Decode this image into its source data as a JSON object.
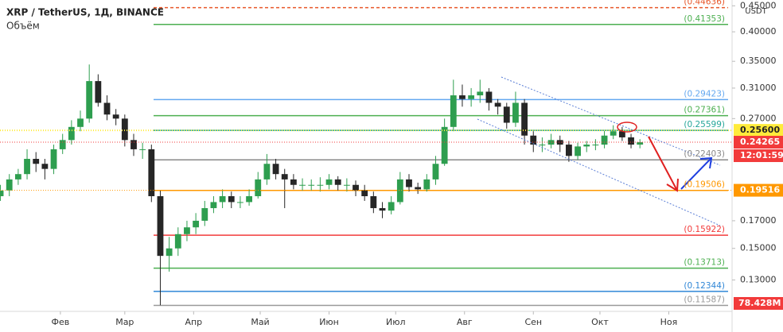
{
  "chart_data": {
    "type": "candlestick",
    "title": "XRP / TetherUS, 1Д, BINANCE",
    "subtitle": "Объём",
    "y_axis_label": "USDT",
    "log_scale": true,
    "up_color": "#2e9e4f",
    "down_color": "#262626",
    "x": [
      4,
      8,
      12,
      16,
      20,
      24,
      28,
      32,
      36,
      40,
      44,
      48,
      52,
      56,
      60,
      64,
      68,
      72,
      76,
      80,
      84,
      88,
      92,
      96,
      100,
      104,
      108,
      112,
      116,
      120,
      124,
      128,
      132,
      136,
      140,
      144,
      148,
      152,
      156,
      160,
      164,
      168,
      172,
      176,
      180,
      184,
      188,
      192,
      196,
      200,
      204,
      208,
      212,
      216,
      220,
      224,
      228,
      232,
      236,
      240,
      244,
      248,
      252,
      256,
      260,
      264,
      268,
      272,
      276,
      280,
      284,
      288,
      292
    ],
    "ohlc": [
      [
        0.19,
        0.2,
        0.186,
        0.195
      ],
      [
        0.195,
        0.21,
        0.19,
        0.205
      ],
      [
        0.205,
        0.215,
        0.2,
        0.21
      ],
      [
        0.21,
        0.235,
        0.205,
        0.225
      ],
      [
        0.225,
        0.232,
        0.212,
        0.22
      ],
      [
        0.22,
        0.225,
        0.205,
        0.215
      ],
      [
        0.215,
        0.24,
        0.21,
        0.235
      ],
      [
        0.235,
        0.252,
        0.23,
        0.245
      ],
      [
        0.245,
        0.268,
        0.24,
        0.26
      ],
      [
        0.26,
        0.28,
        0.255,
        0.27
      ],
      [
        0.27,
        0.345,
        0.265,
        0.32
      ],
      [
        0.32,
        0.33,
        0.285,
        0.29
      ],
      [
        0.29,
        0.3,
        0.268,
        0.275
      ],
      [
        0.275,
        0.282,
        0.262,
        0.27
      ],
      [
        0.27,
        0.275,
        0.238,
        0.245
      ],
      [
        0.245,
        0.252,
        0.228,
        0.235
      ],
      [
        0.235,
        0.242,
        0.225,
        0.235
      ],
      [
        0.235,
        0.24,
        0.185,
        0.19
      ],
      [
        0.19,
        0.195,
        0.116,
        0.145
      ],
      [
        0.145,
        0.158,
        0.135,
        0.15
      ],
      [
        0.15,
        0.165,
        0.145,
        0.16
      ],
      [
        0.16,
        0.17,
        0.155,
        0.165
      ],
      [
        0.165,
        0.176,
        0.16,
        0.17
      ],
      [
        0.17,
        0.186,
        0.166,
        0.18
      ],
      [
        0.18,
        0.19,
        0.176,
        0.185
      ],
      [
        0.185,
        0.196,
        0.18,
        0.19
      ],
      [
        0.19,
        0.194,
        0.18,
        0.185
      ],
      [
        0.185,
        0.19,
        0.18,
        0.185
      ],
      [
        0.185,
        0.196,
        0.182,
        0.19
      ],
      [
        0.19,
        0.212,
        0.188,
        0.205
      ],
      [
        0.205,
        0.23,
        0.2,
        0.22
      ],
      [
        0.22,
        0.225,
        0.205,
        0.21
      ],
      [
        0.21,
        0.215,
        0.18,
        0.205
      ],
      [
        0.205,
        0.21,
        0.196,
        0.2
      ],
      [
        0.2,
        0.206,
        0.195,
        0.2
      ],
      [
        0.2,
        0.205,
        0.195,
        0.2
      ],
      [
        0.2,
        0.207,
        0.194,
        0.2
      ],
      [
        0.2,
        0.21,
        0.196,
        0.205
      ],
      [
        0.205,
        0.208,
        0.195,
        0.2
      ],
      [
        0.2,
        0.206,
        0.194,
        0.2
      ],
      [
        0.2,
        0.204,
        0.19,
        0.195
      ],
      [
        0.195,
        0.2,
        0.186,
        0.19
      ],
      [
        0.19,
        0.194,
        0.176,
        0.18
      ],
      [
        0.18,
        0.185,
        0.172,
        0.178
      ],
      [
        0.178,
        0.19,
        0.175,
        0.185
      ],
      [
        0.185,
        0.212,
        0.183,
        0.205
      ],
      [
        0.205,
        0.21,
        0.194,
        0.198
      ],
      [
        0.198,
        0.202,
        0.192,
        0.196
      ],
      [
        0.196,
        0.21,
        0.194,
        0.205
      ],
      [
        0.205,
        0.228,
        0.2,
        0.22
      ],
      [
        0.22,
        0.27,
        0.218,
        0.26
      ],
      [
        0.26,
        0.322,
        0.255,
        0.3
      ],
      [
        0.3,
        0.315,
        0.285,
        0.295
      ],
      [
        0.295,
        0.31,
        0.285,
        0.3
      ],
      [
        0.3,
        0.322,
        0.29,
        0.305
      ],
      [
        0.305,
        0.31,
        0.28,
        0.29
      ],
      [
        0.29,
        0.295,
        0.275,
        0.285
      ],
      [
        0.285,
        0.29,
        0.258,
        0.265
      ],
      [
        0.265,
        0.305,
        0.26,
        0.29
      ],
      [
        0.29,
        0.295,
        0.24,
        0.25
      ],
      [
        0.25,
        0.255,
        0.232,
        0.24
      ],
      [
        0.24,
        0.248,
        0.232,
        0.24
      ],
      [
        0.24,
        0.252,
        0.236,
        0.245
      ],
      [
        0.245,
        0.25,
        0.232,
        0.24
      ],
      [
        0.24,
        0.244,
        0.222,
        0.228
      ],
      [
        0.228,
        0.242,
        0.224,
        0.238
      ],
      [
        0.238,
        0.244,
        0.232,
        0.24
      ],
      [
        0.24,
        0.246,
        0.234,
        0.24
      ],
      [
        0.24,
        0.256,
        0.236,
        0.25
      ],
      [
        0.25,
        0.262,
        0.246,
        0.255
      ],
      [
        0.255,
        0.26,
        0.244,
        0.248
      ],
      [
        0.248,
        0.252,
        0.236,
        0.24
      ],
      [
        0.24,
        0.246,
        0.236,
        0.2426
      ]
    ],
    "xlim": [
      3.8,
      333.5
    ],
    "xticks": [
      {
        "value": 31,
        "label": "Фев"
      },
      {
        "value": 60,
        "label": "Мар"
      },
      {
        "value": 91,
        "label": "Апр"
      },
      {
        "value": 121,
        "label": "Май"
      },
      {
        "value": 152,
        "label": "Июн"
      },
      {
        "value": 182,
        "label": "Июл"
      },
      {
        "value": 213,
        "label": "Авг"
      },
      {
        "value": 244,
        "label": "Сен"
      },
      {
        "value": 274,
        "label": "Окт"
      },
      {
        "value": 305,
        "label": "Ноя"
      }
    ],
    "ylim": [
      0.1136,
      0.462
    ],
    "yticks": [
      {
        "value": 0.45,
        "label": "0.45000"
      },
      {
        "value": 0.4,
        "label": "0.40000"
      },
      {
        "value": 0.35,
        "label": "0.35000"
      },
      {
        "value": 0.31,
        "label": "0.31000"
      },
      {
        "value": 0.27,
        "label": "0.27000"
      },
      {
        "value": 0.17,
        "label": "0.17000"
      },
      {
        "value": 0.15,
        "label": "0.15000"
      },
      {
        "value": 0.13,
        "label": "0.13000"
      }
    ],
    "levels": [
      {
        "value": 0.44636,
        "label": "(0.44636)",
        "color": "#e8572a"
      },
      {
        "value": 0.41353,
        "label": "(0.41353)",
        "color": "#4caf50"
      },
      {
        "value": 0.29423,
        "label": "(0.29423)",
        "color": "#64a8f0"
      },
      {
        "value": 0.27361,
        "label": "(0.27361)",
        "color": "#4caf50"
      },
      {
        "value": 0.25599,
        "label": "(0.25599)",
        "color": "#26a69a"
      },
      {
        "value": 0.22403,
        "label": "(0.22403)",
        "color": "#888888"
      },
      {
        "value": 0.19506,
        "label": "(0.19506)",
        "color": "#ff9800"
      },
      {
        "value": 0.15922,
        "label": "(0.15922)",
        "color": "#f23b3b"
      },
      {
        "value": 0.13713,
        "label": "(0.13713)",
        "color": "#4caf50"
      },
      {
        "value": 0.12344,
        "label": "(0.12344)",
        "color": "#2f86d6"
      },
      {
        "value": 0.11587,
        "label": "(0.11587)",
        "color": "#999999"
      }
    ],
    "price_labels": [
      {
        "value": 0.256,
        "label": "0.25600",
        "color": "#ffeb3b"
      },
      {
        "value": 0.24265,
        "label": "0.24265",
        "color": "#f23b3b"
      },
      {
        "value": 0.19516,
        "label": "0.19516",
        "color": "#ff9800"
      }
    ],
    "countdown": "12:01:59",
    "volume_label": "78.428M"
  }
}
